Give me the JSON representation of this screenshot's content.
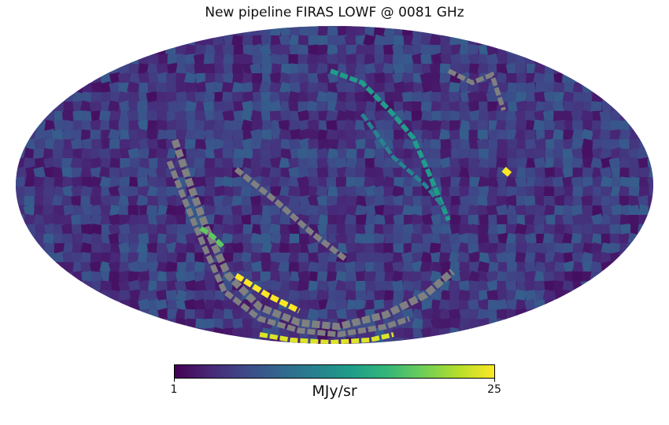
{
  "title": "New pipeline FIRAS LOWF @ 0081 GHz",
  "projection": "mollweide",
  "colormap": {
    "name": "viridis",
    "min": 1,
    "max": 25,
    "min_label": "1",
    "max_label": "25",
    "unit": "MJy/sr",
    "bad_color": "#808080"
  }
}
